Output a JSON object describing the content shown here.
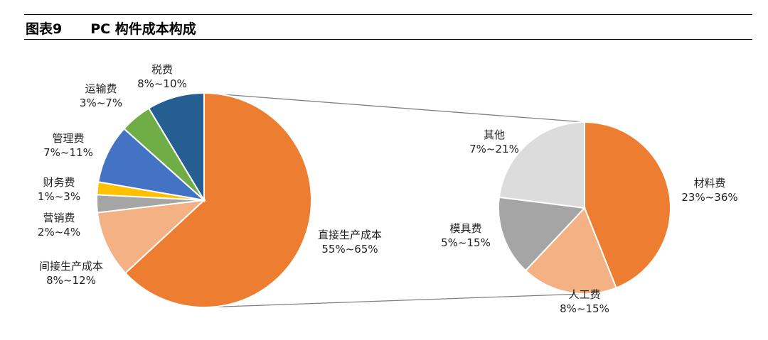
{
  "figure": {
    "number": "图表9",
    "title": "PC 构件成本构成"
  },
  "chart_data": [
    {
      "type": "pie",
      "title": "",
      "slices": [
        {
          "label": "直接生产成本",
          "range": "55%~65%",
          "value": 66,
          "color": "#ED7D31"
        },
        {
          "label": "间接生产成本",
          "range": "8%~12%",
          "value": 10.5,
          "color": "#F4B183"
        },
        {
          "label": "营销费",
          "range": "2%~4%",
          "value": 2.8,
          "color": "#A5A5A5"
        },
        {
          "label": "财务费",
          "range": "1%~3%",
          "value": 2,
          "color": "#FFC000"
        },
        {
          "label": "管理费",
          "range": "7%~11%",
          "value": 9.3,
          "color": "#4472C4"
        },
        {
          "label": "运输费",
          "range": "3%~7%",
          "value": 5,
          "color": "#70AD47"
        },
        {
          "label": "税费",
          "range": "8%~10%",
          "value": 9,
          "color": "#255E91"
        }
      ]
    },
    {
      "type": "pie",
      "title": "",
      "slices": [
        {
          "label": "材料费",
          "range": "23%~36%",
          "value": 44,
          "color": "#ED7D31"
        },
        {
          "label": "人工费",
          "range": "8%~15%",
          "value": 18,
          "color": "#F4B183"
        },
        {
          "label": "模具费",
          "range": "5%~15%",
          "value": 15,
          "color": "#A5A5A5"
        },
        {
          "label": "其他",
          "range": "7%~21%",
          "value": 23,
          "color": "#DCDCDC"
        }
      ]
    }
  ]
}
